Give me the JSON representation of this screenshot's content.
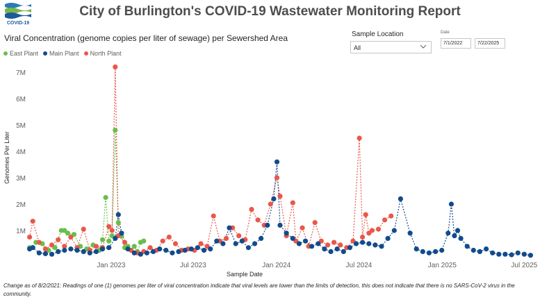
{
  "header": {
    "logo_text": "COVID-19",
    "title": "City of Burlington's COVID-19 Wastewater Monitoring Report"
  },
  "filters": {
    "sample_location_label": "Sample Location",
    "sample_location_value": "All",
    "date_label": "Date",
    "date_start": "7/1/2022",
    "date_end": "7/22/2025"
  },
  "chart_title": "Viral Concentration (genome copies per liter of sewage) per Sewershed Area",
  "footnote": "Change as of 8/2/2021: Readings of one (1) genomes per liter of viral concentration indicate that viral levels are lower than the limits of detection, this does not indicate that there is no SARS-CoV-2 virus in the community.",
  "colors": {
    "east": "#6abf4b",
    "main": "#124b8c",
    "north": "#e8584a"
  },
  "chart_data": {
    "type": "scatter",
    "xlabel": "Sample Date",
    "ylabel": "Genomes Per Liter",
    "xlim": [
      "2022-07-01",
      "2025-07-22"
    ],
    "ylim": [
      0,
      7500000
    ],
    "y_ticks": [
      {
        "value": 1000000,
        "label": "1M"
      },
      {
        "value": 2000000,
        "label": "2M"
      },
      {
        "value": 3000000,
        "label": "3M"
      },
      {
        "value": 4000000,
        "label": "4M"
      },
      {
        "value": 5000000,
        "label": "5M"
      },
      {
        "value": 6000000,
        "label": "6M"
      },
      {
        "value": 7000000,
        "label": "7M"
      }
    ],
    "x_ticks": [
      {
        "value": "2023-01-01",
        "label": "Jan 2023"
      },
      {
        "value": "2023-07-01",
        "label": "Jul 2023"
      },
      {
        "value": "2024-01-01",
        "label": "Jan 2024"
      },
      {
        "value": "2024-07-01",
        "label": "Jul 2024"
      },
      {
        "value": "2025-01-01",
        "label": "Jan 2025"
      },
      {
        "value": "2025-07-01",
        "label": "Jul 2025"
      }
    ],
    "legend_position": "top-left",
    "grid": false,
    "series": [
      {
        "name": "East Plant",
        "color_key": "east",
        "points": [
          [
            "2022-07-05",
            350000
          ],
          [
            "2022-07-19",
            550000
          ],
          [
            "2022-08-02",
            500000
          ],
          [
            "2022-08-16",
            250000
          ],
          [
            "2022-08-30",
            350000
          ],
          [
            "2022-09-13",
            1000000
          ],
          [
            "2022-09-20",
            1000000
          ],
          [
            "2022-09-27",
            900000
          ],
          [
            "2022-10-11",
            850000
          ],
          [
            "2022-10-25",
            400000
          ],
          [
            "2022-11-08",
            300000
          ],
          [
            "2022-11-22",
            450000
          ],
          [
            "2022-12-06",
            250000
          ],
          [
            "2022-12-13",
            650000
          ],
          [
            "2022-12-20",
            2250000
          ],
          [
            "2022-12-27",
            600000
          ],
          [
            "2023-01-03",
            800000
          ],
          [
            "2023-01-10",
            4800000
          ],
          [
            "2023-01-17",
            1300000
          ],
          [
            "2023-01-24",
            800000
          ],
          [
            "2023-01-31",
            350000
          ],
          [
            "2023-02-07",
            400000
          ],
          [
            "2023-02-14",
            250000
          ],
          [
            "2023-02-21",
            400000
          ],
          [
            "2023-02-28",
            200000
          ],
          [
            "2023-03-07",
            550000
          ],
          [
            "2023-03-14",
            600000
          ]
        ]
      },
      {
        "name": "Main Plant",
        "color_key": "main",
        "points": [
          [
            "2022-07-05",
            300000
          ],
          [
            "2022-07-12",
            350000
          ],
          [
            "2022-07-26",
            150000
          ],
          [
            "2022-08-09",
            120000
          ],
          [
            "2022-08-23",
            100000
          ],
          [
            "2022-09-06",
            200000
          ],
          [
            "2022-09-20",
            250000
          ],
          [
            "2022-10-04",
            300000
          ],
          [
            "2022-10-18",
            250000
          ],
          [
            "2022-11-01",
            200000
          ],
          [
            "2022-11-15",
            150000
          ],
          [
            "2022-11-29",
            200000
          ],
          [
            "2022-12-13",
            300000
          ],
          [
            "2022-12-27",
            350000
          ],
          [
            "2023-01-10",
            700000
          ],
          [
            "2023-01-17",
            1600000
          ],
          [
            "2023-01-24",
            900000
          ],
          [
            "2023-02-07",
            300000
          ],
          [
            "2023-02-21",
            150000
          ],
          [
            "2023-03-07",
            100000
          ],
          [
            "2023-03-21",
            150000
          ],
          [
            "2023-04-04",
            200000
          ],
          [
            "2023-04-18",
            300000
          ],
          [
            "2023-05-02",
            250000
          ],
          [
            "2023-05-16",
            150000
          ],
          [
            "2023-05-30",
            200000
          ],
          [
            "2023-06-13",
            250000
          ],
          [
            "2023-06-27",
            300000
          ],
          [
            "2023-07-11",
            350000
          ],
          [
            "2023-07-25",
            250000
          ],
          [
            "2023-08-08",
            300000
          ],
          [
            "2023-08-22",
            600000
          ],
          [
            "2023-09-05",
            500000
          ],
          [
            "2023-09-19",
            1100000
          ],
          [
            "2023-10-03",
            500000
          ],
          [
            "2023-10-17",
            600000
          ],
          [
            "2023-10-31",
            350000
          ],
          [
            "2023-11-14",
            500000
          ],
          [
            "2023-11-28",
            700000
          ],
          [
            "2023-12-12",
            1200000
          ],
          [
            "2023-12-26",
            2200000
          ],
          [
            "2024-01-02",
            3600000
          ],
          [
            "2024-01-09",
            1200000
          ],
          [
            "2024-01-23",
            900000
          ],
          [
            "2024-02-06",
            700000
          ],
          [
            "2024-02-20",
            500000
          ],
          [
            "2024-03-05",
            600000
          ],
          [
            "2024-03-19",
            400000
          ],
          [
            "2024-04-02",
            500000
          ],
          [
            "2024-04-16",
            300000
          ],
          [
            "2024-04-30",
            200000
          ],
          [
            "2024-05-14",
            300000
          ],
          [
            "2024-05-28",
            200000
          ],
          [
            "2024-06-11",
            350000
          ],
          [
            "2024-06-25",
            500000
          ],
          [
            "2024-07-09",
            550000
          ],
          [
            "2024-07-23",
            500000
          ],
          [
            "2024-08-06",
            450000
          ],
          [
            "2024-08-20",
            400000
          ],
          [
            "2024-09-03",
            700000
          ],
          [
            "2024-09-17",
            1000000
          ],
          [
            "2024-10-01",
            2200000
          ],
          [
            "2024-10-22",
            900000
          ],
          [
            "2024-11-05",
            300000
          ],
          [
            "2024-11-19",
            200000
          ],
          [
            "2024-12-03",
            150000
          ],
          [
            "2024-12-17",
            200000
          ],
          [
            "2024-12-31",
            250000
          ],
          [
            "2025-01-14",
            900000
          ],
          [
            "2025-01-21",
            2000000
          ],
          [
            "2025-01-28",
            800000
          ],
          [
            "2025-02-04",
            1000000
          ],
          [
            "2025-02-11",
            700000
          ],
          [
            "2025-02-25",
            400000
          ],
          [
            "2025-03-11",
            250000
          ],
          [
            "2025-03-25",
            200000
          ],
          [
            "2025-04-08",
            300000
          ],
          [
            "2025-04-22",
            150000
          ],
          [
            "2025-05-06",
            100000
          ],
          [
            "2025-05-20",
            100000
          ],
          [
            "2025-06-03",
            80000
          ],
          [
            "2025-06-17",
            150000
          ],
          [
            "2025-07-01",
            100000
          ],
          [
            "2025-07-15",
            60000
          ]
        ]
      },
      {
        "name": "North Plant",
        "color_key": "north",
        "points": [
          [
            "2022-07-05",
            750000
          ],
          [
            "2022-07-12",
            1350000
          ],
          [
            "2022-07-26",
            550000
          ],
          [
            "2022-08-09",
            300000
          ],
          [
            "2022-08-23",
            450000
          ],
          [
            "2022-09-06",
            650000
          ],
          [
            "2022-09-20",
            400000
          ],
          [
            "2022-10-04",
            750000
          ],
          [
            "2022-10-18",
            350000
          ],
          [
            "2022-11-01",
            1050000
          ],
          [
            "2022-11-15",
            250000
          ],
          [
            "2022-11-29",
            400000
          ],
          [
            "2022-12-13",
            350000
          ],
          [
            "2022-12-27",
            1150000
          ],
          [
            "2023-01-03",
            1000000
          ],
          [
            "2023-01-10",
            7200000
          ],
          [
            "2023-01-17",
            800000
          ],
          [
            "2023-01-31",
            550000
          ],
          [
            "2023-02-14",
            250000
          ],
          [
            "2023-02-28",
            150000
          ],
          [
            "2023-03-14",
            200000
          ],
          [
            "2023-03-28",
            350000
          ],
          [
            "2023-04-11",
            250000
          ],
          [
            "2023-04-25",
            600000
          ],
          [
            "2023-05-09",
            750000
          ],
          [
            "2023-05-23",
            500000
          ],
          [
            "2023-06-06",
            250000
          ],
          [
            "2023-06-20",
            300000
          ],
          [
            "2023-07-04",
            250000
          ],
          [
            "2023-07-18",
            500000
          ],
          [
            "2023-08-01",
            400000
          ],
          [
            "2023-08-15",
            1550000
          ],
          [
            "2023-08-29",
            600000
          ],
          [
            "2023-09-12",
            700000
          ],
          [
            "2023-09-26",
            1100000
          ],
          [
            "2023-10-10",
            800000
          ],
          [
            "2023-10-24",
            650000
          ],
          [
            "2023-11-07",
            1800000
          ],
          [
            "2023-11-21",
            1400000
          ],
          [
            "2023-12-05",
            1200000
          ],
          [
            "2023-12-19",
            2000000
          ],
          [
            "2024-01-02",
            3000000
          ],
          [
            "2024-01-09",
            2300000
          ],
          [
            "2024-01-23",
            800000
          ],
          [
            "2024-02-06",
            2050000
          ],
          [
            "2024-02-13",
            600000
          ],
          [
            "2024-02-27",
            1100000
          ],
          [
            "2024-03-12",
            400000
          ],
          [
            "2024-03-26",
            1300000
          ],
          [
            "2024-04-09",
            600000
          ],
          [
            "2024-04-23",
            450000
          ],
          [
            "2024-05-07",
            550000
          ],
          [
            "2024-05-21",
            450000
          ],
          [
            "2024-06-04",
            350000
          ],
          [
            "2024-06-18",
            600000
          ],
          [
            "2024-07-02",
            4500000
          ],
          [
            "2024-07-09",
            750000
          ],
          [
            "2024-07-16",
            1600000
          ],
          [
            "2024-07-23",
            900000
          ],
          [
            "2024-07-30",
            1000000
          ],
          [
            "2024-08-13",
            1050000
          ],
          [
            "2024-08-27",
            1400000
          ],
          [
            "2024-09-10",
            1550000
          ]
        ]
      }
    ]
  }
}
